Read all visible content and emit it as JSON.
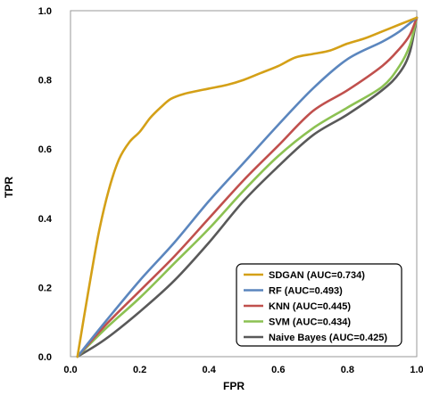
{
  "chart_data": {
    "type": "line",
    "xlabel": "FPR",
    "ylabel": "TPR",
    "xlim": [
      0.0,
      1.0
    ],
    "ylim": [
      0.0,
      1.0
    ],
    "xticks": [
      "0.0",
      "0.2",
      "0.4",
      "0.6",
      "0.8",
      "1.0"
    ],
    "yticks": [
      "0.0",
      "0.2",
      "0.4",
      "0.6",
      "0.8",
      "1.0"
    ],
    "grid": false,
    "legend_position": "bottom-right",
    "series": [
      {
        "name": "SDGAN (AUC=0.734)",
        "color": "#D4A017",
        "x": [
          0.02,
          0.05,
          0.08,
          0.11,
          0.14,
          0.17,
          0.2,
          0.23,
          0.26,
          0.29,
          0.33,
          0.4,
          0.45,
          0.5,
          0.55,
          0.6,
          0.65,
          0.7,
          0.75,
          0.8,
          0.85,
          0.9,
          0.95,
          1.0
        ],
        "y": [
          0.0,
          0.18,
          0.35,
          0.48,
          0.57,
          0.62,
          0.65,
          0.69,
          0.72,
          0.745,
          0.76,
          0.775,
          0.785,
          0.8,
          0.82,
          0.84,
          0.865,
          0.875,
          0.885,
          0.905,
          0.92,
          0.94,
          0.96,
          0.98
        ]
      },
      {
        "name": "RF (AUC=0.493)",
        "color": "#5B86BE",
        "x": [
          0.02,
          0.1,
          0.2,
          0.3,
          0.4,
          0.5,
          0.6,
          0.7,
          0.8,
          0.9,
          0.95,
          1.0
        ],
        "y": [
          0.0,
          0.1,
          0.22,
          0.33,
          0.45,
          0.56,
          0.67,
          0.775,
          0.86,
          0.91,
          0.94,
          0.98
        ]
      },
      {
        "name": "KNN (AUC=0.445)",
        "color": "#C0504D",
        "x": [
          0.02,
          0.1,
          0.2,
          0.3,
          0.4,
          0.5,
          0.6,
          0.7,
          0.8,
          0.9,
          0.95,
          0.98,
          1.0
        ],
        "y": [
          0.0,
          0.09,
          0.19,
          0.29,
          0.4,
          0.51,
          0.61,
          0.71,
          0.77,
          0.84,
          0.89,
          0.93,
          0.98
        ]
      },
      {
        "name": "SVM (AUC=0.434)",
        "color": "#8CC152",
        "x": [
          0.02,
          0.1,
          0.2,
          0.3,
          0.4,
          0.5,
          0.6,
          0.7,
          0.8,
          0.9,
          0.95,
          0.98,
          1.0
        ],
        "y": [
          0.0,
          0.08,
          0.17,
          0.27,
          0.37,
          0.48,
          0.58,
          0.66,
          0.72,
          0.78,
          0.84,
          0.9,
          0.98
        ]
      },
      {
        "name": "Naive Bayes (AUC=0.425)",
        "color": "#595959",
        "x": [
          0.02,
          0.1,
          0.2,
          0.3,
          0.4,
          0.5,
          0.6,
          0.7,
          0.8,
          0.9,
          0.95,
          0.98,
          1.0
        ],
        "y": [
          0.0,
          0.05,
          0.13,
          0.22,
          0.33,
          0.45,
          0.55,
          0.64,
          0.7,
          0.77,
          0.82,
          0.88,
          0.98
        ]
      }
    ]
  }
}
